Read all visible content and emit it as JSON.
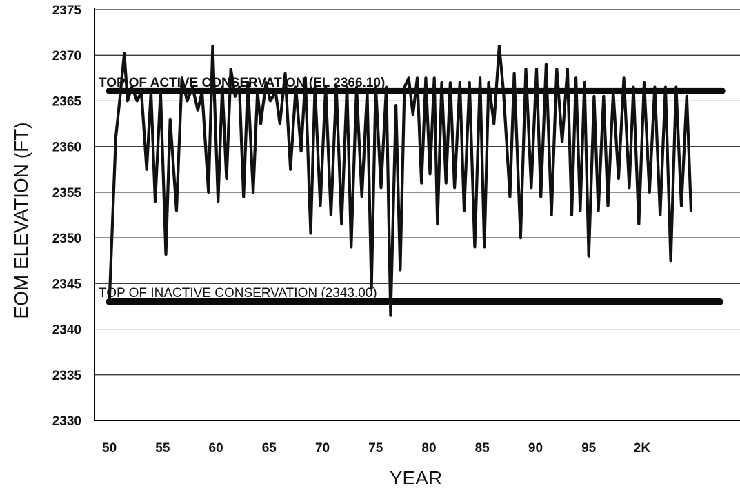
{
  "chart_data": {
    "type": "line",
    "xlabel": "YEAR",
    "ylabel": "EOM ELEVATION (FT)",
    "ylim": [
      2330,
      2375
    ],
    "yticks": [
      2330,
      2335,
      2340,
      2345,
      2350,
      2355,
      2360,
      2365,
      2370,
      2375
    ],
    "xlim": [
      1948.6,
      2009.2
    ],
    "xticks": [
      {
        "value": 1950,
        "label": "50"
      },
      {
        "value": 1955,
        "label": "55"
      },
      {
        "value": 1960,
        "label": "60"
      },
      {
        "value": 1965,
        "label": "65"
      },
      {
        "value": 1970,
        "label": "70"
      },
      {
        "value": 1975,
        "label": "75"
      },
      {
        "value": 1980,
        "label": "80"
      },
      {
        "value": 1985,
        "label": "85"
      },
      {
        "value": 1990,
        "label": "90"
      },
      {
        "value": 1995,
        "label": "95"
      },
      {
        "value": 2000,
        "label": "2K"
      }
    ],
    "grid": "horizontal",
    "reference_lines": [
      {
        "label": "TOP OF ACTIVE CONSERVATION (EL 2366.10)",
        "y": 2366.1,
        "x_start": 1950,
        "x_end": 2007.5,
        "label_bold": true
      },
      {
        "label": "TOP OF INACTIVE CONSERVATION (2343.00)",
        "y": 2343.0,
        "x_start": 1950,
        "x_end": 2007.3,
        "label_bold": false
      }
    ],
    "series": [
      {
        "x": [
          1950.0,
          1950.6,
          1951.0,
          1951.4,
          1951.7,
          1952.1,
          1952.6,
          1953.0,
          1953.5,
          1953.9,
          1954.3,
          1954.8,
          1955.3,
          1955.7,
          1956.3,
          1956.8,
          1957.3,
          1957.8,
          1958.3,
          1958.7,
          1959.3,
          1959.7,
          1960.2,
          1960.6,
          1961.0,
          1961.4,
          1961.8,
          1962.2,
          1962.6,
          1963.0,
          1963.5,
          1963.9,
          1964.2,
          1964.7,
          1965.1,
          1965.6,
          1966.0,
          1966.5,
          1967.0,
          1967.5,
          1968.0,
          1968.4,
          1968.9,
          1969.3,
          1969.8,
          1970.3,
          1970.8,
          1971.3,
          1971.8,
          1972.3,
          1972.7,
          1973.2,
          1973.7,
          1974.2,
          1974.6,
          1975.0,
          1975.5,
          1976.0,
          1976.4,
          1976.9,
          1977.3,
          1977.7,
          1978.1,
          1978.5,
          1978.9,
          1979.3,
          1979.7,
          1980.1,
          1980.5,
          1980.8,
          1981.2,
          1981.6,
          1982.0,
          1982.4,
          1982.9,
          1983.3,
          1983.8,
          1984.3,
          1984.8,
          1985.2,
          1985.6,
          1986.1,
          1986.6,
          1987.0,
          1987.6,
          1988.0,
          1988.6,
          1989.1,
          1989.6,
          1990.1,
          1990.5,
          1991.0,
          1991.5,
          1992.0,
          1992.5,
          1993.0,
          1993.4,
          1993.8,
          1994.2,
          1994.6,
          1995.0,
          1995.5,
          1995.9,
          1996.4,
          1996.8,
          1997.3,
          1997.8,
          1998.3,
          1998.8,
          1999.2,
          1999.7,
          2000.2,
          2000.7,
          2001.2,
          2001.7,
          2002.2,
          2002.7,
          2003.2,
          2003.7,
          2004.2,
          2004.6
        ],
        "y": [
          2343.0,
          2361.0,
          2365.5,
          2370.2,
          2365.0,
          2366.5,
          2365.0,
          2366.0,
          2357.5,
          2366.0,
          2354.0,
          2366.0,
          2348.2,
          2363.0,
          2353.0,
          2367.5,
          2365.0,
          2366.5,
          2364.0,
          2366.0,
          2355.0,
          2371.0,
          2354.0,
          2366.5,
          2356.5,
          2368.5,
          2365.5,
          2366.5,
          2354.5,
          2367.0,
          2355.0,
          2366.0,
          2362.5,
          2367.0,
          2365.0,
          2366.0,
          2362.5,
          2368.0,
          2357.5,
          2366.5,
          2359.5,
          2367.5,
          2350.5,
          2366.5,
          2353.5,
          2366.5,
          2352.5,
          2366.5,
          2351.5,
          2366.5,
          2349.0,
          2366.5,
          2354.5,
          2366.0,
          2344.5,
          2366.5,
          2355.5,
          2366.5,
          2341.5,
          2364.5,
          2346.5,
          2366.5,
          2367.5,
          2363.5,
          2367.5,
          2356.0,
          2367.5,
          2357.0,
          2367.5,
          2351.5,
          2367.0,
          2356.0,
          2367.0,
          2355.5,
          2367.0,
          2353.0,
          2367.0,
          2349.0,
          2367.5,
          2349.0,
          2367.0,
          2362.5,
          2371.0,
          2366.0,
          2354.5,
          2368.0,
          2350.0,
          2368.5,
          2355.5,
          2368.5,
          2354.5,
          2369.0,
          2352.5,
          2368.5,
          2360.5,
          2368.5,
          2352.5,
          2367.5,
          2353.0,
          2367.0,
          2348.0,
          2365.5,
          2353.0,
          2365.5,
          2353.5,
          2366.0,
          2356.5,
          2367.5,
          2355.5,
          2366.5,
          2351.5,
          2367.0,
          2355.0,
          2366.5,
          2352.5,
          2366.5,
          2347.5,
          2366.5,
          2353.5,
          2365.5,
          2353.0
        ]
      }
    ]
  }
}
